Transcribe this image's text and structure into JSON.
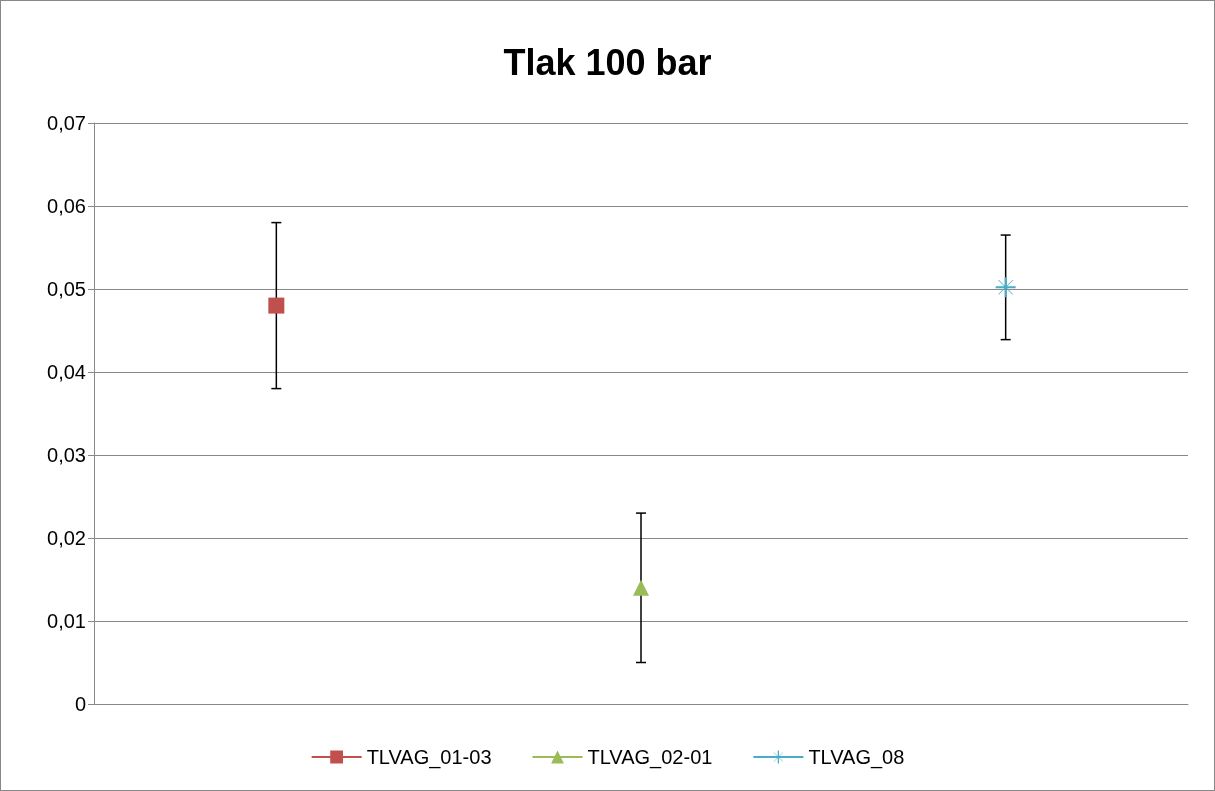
{
  "chart_data": {
    "type": "line",
    "title": "Tlak 100 bar",
    "categories": [
      null,
      null,
      null
    ],
    "series": [
      {
        "name": "TLVAG_01-03",
        "color": "#c0504d",
        "marker": "square",
        "values": [
          0.048,
          null,
          null
        ],
        "errors": [
          0.01,
          null,
          null
        ]
      },
      {
        "name": "TLVAG_02-01",
        "color": "#9bbb59",
        "marker": "triangle",
        "values": [
          null,
          0.014,
          null
        ],
        "errors": [
          null,
          0.009,
          null
        ]
      },
      {
        "name": "TLVAG_08",
        "color": "#4bacc6",
        "marker": "cross",
        "values": [
          null,
          null,
          0.0502
        ],
        "errors": [
          null,
          null,
          0.0063
        ]
      }
    ],
    "ylim": [
      0,
      0.07
    ],
    "yticks": [
      0,
      {
        "value": 0.01,
        "label": "0,01"
      },
      {
        "value": 0.02,
        "label": "0,02"
      },
      {
        "value": 0.03,
        "label": "0,03"
      },
      {
        "value": 0.04,
        "label": "0,04"
      },
      {
        "value": 0.05,
        "label": "0,05"
      },
      {
        "value": 0.06,
        "label": "0,06"
      },
      {
        "value": 0.07,
        "label": "0,07"
      }
    ],
    "grid": "y",
    "legend": "bottom",
    "tick_labels": "y"
  }
}
